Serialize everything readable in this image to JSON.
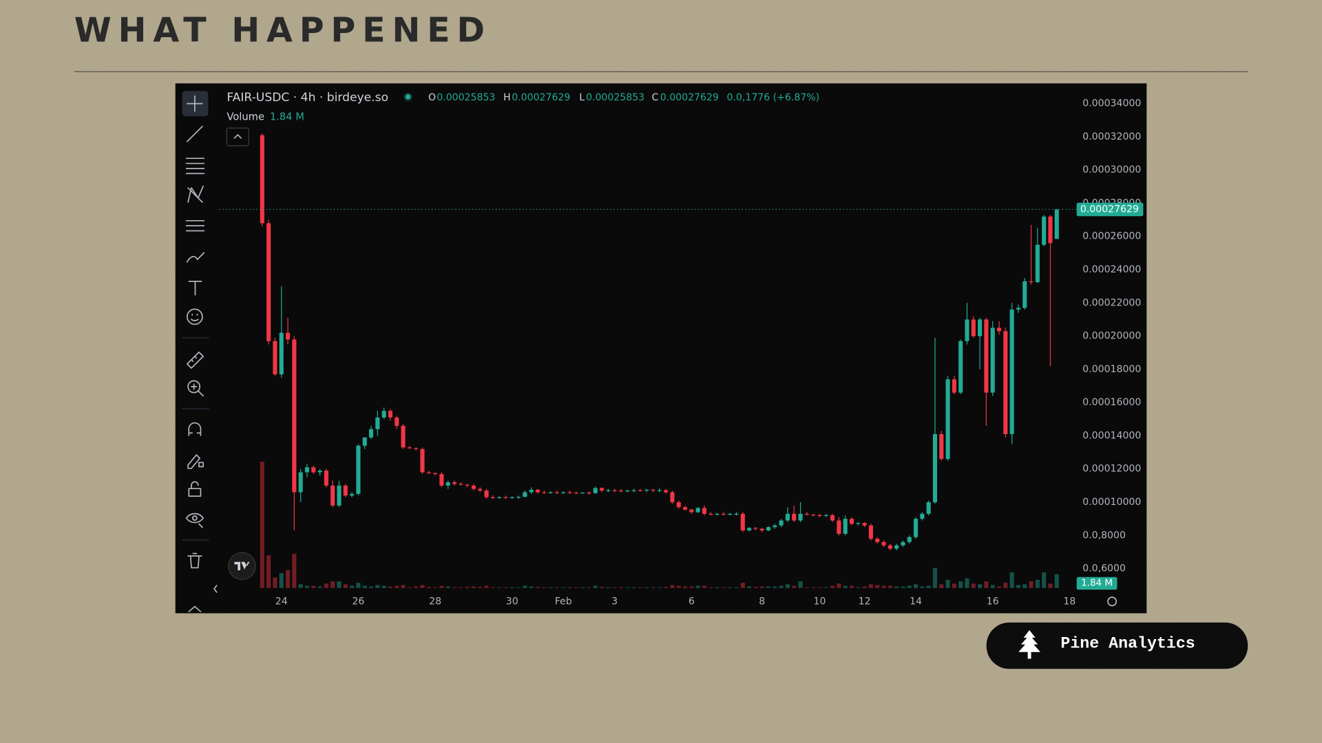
{
  "slide": {
    "title": "WHAT HAPPENED",
    "brand": "Pine Analytics"
  },
  "chart_data": {
    "type": "candlestick",
    "title": "FAIR-USDC · 4h · birdeye.so",
    "ohlc_legend": {
      "o_label": "O",
      "o": "0.00025853",
      "h_label": "H",
      "h": "0.00027629",
      "l_label": "L",
      "l": "0.00025853",
      "c_label": "C",
      "c": "0.00027629",
      "change": "0.0,1776 (+6.87%)"
    },
    "volume_title": "Volume",
    "volume_value_label": "1.84 M",
    "up_color": "#22ab94",
    "down_color": "#f23645",
    "grid": false,
    "ylim": [
      6e-05,
      0.00034
    ],
    "yticks": [
      {
        "value": 0.00034,
        "label": "0.00034000"
      },
      {
        "value": 0.00032,
        "label": "0.00032000"
      },
      {
        "value": 0.0003,
        "label": "0.00030000"
      },
      {
        "value": 0.00028,
        "label": "0.00028000"
      },
      {
        "value": 0.00026,
        "label": "0.00026000"
      },
      {
        "value": 0.00024,
        "label": "0.00024000"
      },
      {
        "value": 0.00022,
        "label": "0.00022000"
      },
      {
        "value": 0.0002,
        "label": "0.00020000"
      },
      {
        "value": 0.00018,
        "label": "0.00018000"
      },
      {
        "value": 0.00016,
        "label": "0.00016000"
      },
      {
        "value": 0.00014,
        "label": "0.00014000"
      },
      {
        "value": 0.00012,
        "label": "0.00012000"
      },
      {
        "value": 0.0001,
        "label": "0.00010000"
      },
      {
        "value": 8e-05,
        "label": "0.0,8000"
      },
      {
        "value": 6e-05,
        "label": "0.0,6000"
      }
    ],
    "categories": [
      null,
      null,
      null,
      "24",
      null,
      null,
      null,
      null,
      null,
      null,
      null,
      null,
      null,
      null,
      null,
      "26",
      null,
      null,
      null,
      null,
      null,
      null,
      null,
      null,
      null,
      null,
      null,
      "28",
      null,
      null,
      null,
      null,
      null,
      null,
      null,
      null,
      null,
      null,
      null,
      "30",
      null,
      null,
      null,
      null,
      null,
      null,
      null,
      "Feb",
      null,
      null,
      null,
      null,
      null,
      null,
      null,
      "3",
      null,
      null,
      null,
      null,
      null,
      null,
      null,
      null,
      null,
      null,
      null,
      "6",
      null,
      null,
      null,
      null,
      null,
      null,
      null,
      null,
      null,
      null,
      "8",
      null,
      null,
      null,
      null,
      null,
      null,
      null,
      null,
      "10",
      null,
      null,
      null,
      null,
      null,
      null,
      "12",
      null,
      null,
      null,
      null,
      null,
      null,
      null,
      "14",
      null,
      null,
      null,
      null,
      null,
      null,
      null,
      null,
      null,
      null,
      null,
      "16",
      null,
      null,
      null,
      null,
      null,
      null,
      null,
      null,
      null,
      null,
      null,
      "18"
    ],
    "candles": [
      [
        0.000321,
        0.000322,
        0.000266,
        0.000268
      ],
      [
        0.000268,
        0.00027,
        0.000195,
        0.000197
      ],
      [
        0.000197,
        0.000199,
        0.000176,
        0.000177
      ],
      [
        0.000177,
        0.00023,
        0.000175,
        0.000202
      ],
      [
        0.000202,
        0.000211,
        0.000195,
        0.000198
      ],
      [
        0.000198,
        0.0002,
        8.3e-05,
        0.000106
      ],
      [
        0.000106,
        0.00012,
        0.0001,
        0.000118
      ],
      [
        0.000118,
        0.000123,
        0.000115,
        0.000121
      ],
      [
        0.000121,
        0.000122,
        0.000117,
        0.000118
      ],
      [
        0.000118,
        0.00012,
        0.000116,
        0.000119
      ],
      [
        0.000119,
        0.00012,
        0.000109,
        0.00011
      ],
      [
        0.00011,
        0.000113,
        9.7e-05,
        9.8e-05
      ],
      [
        9.8e-05,
        0.000113,
        9.7e-05,
        0.00011
      ],
      [
        0.00011,
        0.000111,
        0.000103,
        0.000104
      ],
      [
        0.000104,
        0.000106,
        0.000103,
        0.000105
      ],
      [
        0.000105,
        0.000135,
        0.000104,
        0.000134
      ],
      [
        0.000134,
        0.000139,
        0.000132,
        0.000139
      ],
      [
        0.000139,
        0.000146,
        0.000138,
        0.000144
      ],
      [
        0.000144,
        0.000155,
        0.00014,
        0.000151
      ],
      [
        0.000151,
        0.000157,
        0.00015,
        0.000155
      ],
      [
        0.000155,
        0.000156,
        0.000149,
        0.000151
      ],
      [
        0.000151,
        0.000152,
        0.000144,
        0.000146
      ],
      [
        0.000146,
        0.000147,
        0.000132,
        0.000133
      ],
      [
        0.000133,
        0.000134,
        0.000132,
        0.0001325
      ],
      [
        0.0001325,
        0.000133,
        0.000131,
        0.000132
      ],
      [
        0.000132,
        0.000133,
        0.000117,
        0.000118
      ],
      [
        0.000118,
        0.000119,
        0.000117,
        0.0001175
      ],
      [
        0.0001175,
        0.000118,
        0.000116,
        0.000117
      ],
      [
        0.000117,
        0.000118,
        0.000109,
        0.00011
      ],
      [
        0.00011,
        0.000113,
        0.000108,
        0.000112
      ],
      [
        0.000112,
        0.000113,
        0.00011,
        0.000111
      ],
      [
        0.000111,
        0.000112,
        0.00011,
        0.0001105
      ],
      [
        0.0001105,
        0.000111,
        0.000109,
        0.00011
      ],
      [
        0.00011,
        0.000111,
        0.000107,
        0.000108
      ],
      [
        0.000108,
        0.000109,
        0.000106,
        0.000107
      ],
      [
        0.000107,
        0.000108,
        0.000102,
        0.000103
      ],
      [
        0.000103,
        0.000104,
        0.000102,
        0.0001028
      ],
      [
        0.0001028,
        0.0001035,
        0.000102,
        0.000103
      ],
      [
        0.000103,
        0.000104,
        0.000102,
        0.0001027
      ],
      [
        0.0001027,
        0.0001035,
        0.000102,
        0.000103
      ],
      [
        0.000103,
        0.000104,
        0.000102,
        0.0001032
      ],
      [
        0.0001032,
        0.000107,
        0.000103,
        0.000106
      ],
      [
        0.000106,
        0.000109,
        0.000105,
        0.0001075
      ],
      [
        0.0001075,
        0.000108,
        0.000105,
        0.000106
      ],
      [
        0.000106,
        0.000107,
        0.000105,
        0.0001058
      ],
      [
        0.0001058,
        0.0001065,
        0.000105,
        0.000106
      ],
      [
        0.000106,
        0.000107,
        0.000105,
        0.0001055
      ],
      [
        0.0001055,
        0.0001065,
        0.000105,
        0.000106
      ],
      [
        0.000106,
        0.000107,
        0.000105,
        0.0001057
      ],
      [
        0.0001057,
        0.0001065,
        0.000105,
        0.0001055
      ],
      [
        0.0001055,
        0.000106,
        0.000105,
        0.0001058
      ],
      [
        0.0001058,
        0.0001065,
        0.0001045,
        0.0001055
      ],
      [
        0.0001055,
        0.0001095,
        0.000105,
        0.0001085
      ],
      [
        0.0001085,
        0.000109,
        0.000106,
        0.000107
      ],
      [
        0.000107,
        0.000108,
        0.000106,
        0.0001072
      ],
      [
        0.0001072,
        0.000108,
        0.000106,
        0.000107
      ],
      [
        0.000107,
        0.000108,
        0.000106,
        0.0001068
      ],
      [
        0.0001068,
        0.0001075,
        0.000106,
        0.000107
      ],
      [
        0.000107,
        0.000108,
        0.000106,
        0.0001072
      ],
      [
        0.0001072,
        0.000108,
        0.0001065,
        0.000107
      ],
      [
        0.000107,
        0.000108,
        0.000106,
        0.0001075
      ],
      [
        0.0001075,
        0.000108,
        0.000106,
        0.000107
      ],
      [
        0.000107,
        0.0001085,
        0.000106,
        0.0001072
      ],
      [
        0.0001072,
        0.000108,
        0.000105,
        0.000106
      ],
      [
        0.000106,
        0.000107,
        9.9e-05,
        0.0001
      ],
      [
        0.0001,
        0.000101,
        9.6e-05,
        9.7e-05
      ],
      [
        9.7e-05,
        9.8e-05,
        9.5e-05,
        9.55e-05
      ],
      [
        9.55e-05,
        9.6e-05,
        9.3e-05,
        9.4e-05
      ],
      [
        9.4e-05,
        9.7e-05,
        9.35e-05,
        9.65e-05
      ],
      [
        9.65e-05,
        9.8e-05,
        9.2e-05,
        9.3e-05
      ],
      [
        9.3e-05,
        9.4e-05,
        9.2e-05,
        9.28e-05
      ],
      [
        9.28e-05,
        9.35e-05,
        9.2e-05,
        9.3e-05
      ],
      [
        9.3e-05,
        9.4e-05,
        9.2e-05,
        9.27e-05
      ],
      [
        9.27e-05,
        9.35e-05,
        9.2e-05,
        9.3e-05
      ],
      [
        9.3e-05,
        9.4e-05,
        9.2e-05,
        9.3e-05
      ],
      [
        9.3e-05,
        9.4e-05,
        8.2e-05,
        8.3e-05
      ],
      [
        8.3e-05,
        8.5e-05,
        8.25e-05,
        8.45e-05
      ],
      [
        8.45e-05,
        8.5e-05,
        8.3e-05,
        8.4e-05
      ],
      [
        8.4e-05,
        8.45e-05,
        8.2e-05,
        8.3e-05
      ],
      [
        8.3e-05,
        8.55e-05,
        8.25e-05,
        8.5e-05
      ],
      [
        8.5e-05,
        8.7e-05,
        8.4e-05,
        8.6e-05
      ],
      [
        8.6e-05,
        9e-05,
        8.5e-05,
        8.9e-05
      ],
      [
        8.9e-05,
        9.7e-05,
        8.8e-05,
        9.3e-05
      ],
      [
        9.3e-05,
        9.8e-05,
        8.8e-05,
        8.9e-05
      ],
      [
        8.9e-05,
        0.0001,
        8.8e-05,
        9.3e-05
      ],
      [
        9.3e-05,
        9.4e-05,
        9.2e-05,
        9.25e-05
      ],
      [
        9.25e-05,
        9.3e-05,
        9.15e-05,
        9.22e-05
      ],
      [
        9.22e-05,
        9.3e-05,
        9.1e-05,
        9.2e-05
      ],
      [
        9.2e-05,
        9.3e-05,
        9.1e-05,
        9.22e-05
      ],
      [
        9.22e-05,
        9.3e-05,
        8.8e-05,
        8.9e-05
      ],
      [
        8.9e-05,
        9.1e-05,
        8e-05,
        8.1e-05
      ],
      [
        8.1e-05,
        9.2e-05,
        8e-05,
        9e-05
      ],
      [
        9e-05,
        9.1e-05,
        8.6e-05,
        8.7e-05
      ],
      [
        8.7e-05,
        8.8e-05,
        8.6e-05,
        8.75e-05
      ],
      [
        8.75e-05,
        8.8e-05,
        8.5e-05,
        8.6e-05
      ],
      [
        8.6e-05,
        8.7e-05,
        7.7e-05,
        7.8e-05
      ],
      [
        7.8e-05,
        7.9e-05,
        7.5e-05,
        7.6e-05
      ],
      [
        7.6e-05,
        7.7e-05,
        7.3e-05,
        7.4e-05
      ],
      [
        7.4e-05,
        7.5e-05,
        7.1e-05,
        7.2e-05
      ],
      [
        7.2e-05,
        7.5e-05,
        7.1e-05,
        7.4e-05
      ],
      [
        7.4e-05,
        7.7e-05,
        7.3e-05,
        7.6e-05
      ],
      [
        7.6e-05,
        8e-05,
        7.5e-05,
        7.9e-05
      ],
      [
        7.9e-05,
        9.1e-05,
        7.8e-05,
        9e-05
      ],
      [
        9e-05,
        9.4e-05,
        8.9e-05,
        9.3e-05
      ],
      [
        9.3e-05,
        0.000101,
        9.2e-05,
        0.0001
      ],
      [
        0.0001,
        0.000199,
        9.9e-05,
        0.000141
      ],
      [
        0.000141,
        0.000143,
        0.000125,
        0.000126
      ],
      [
        0.000126,
        0.000176,
        0.000125,
        0.000174
      ],
      [
        0.000174,
        0.000176,
        0.000165,
        0.000166
      ],
      [
        0.000166,
        0.000198,
        0.000165,
        0.000197
      ],
      [
        0.000197,
        0.00022,
        0.000195,
        0.00021
      ],
      [
        0.00021,
        0.000212,
        0.000199,
        0.0002
      ],
      [
        0.0002,
        0.000211,
        0.00018,
        0.00021
      ],
      [
        0.00021,
        0.000211,
        0.000146,
        0.000166
      ],
      [
        0.000166,
        0.000209,
        0.000164,
        0.000205
      ],
      [
        0.000205,
        0.000209,
        0.000201,
        0.000203
      ],
      [
        0.000203,
        0.000205,
        0.000139,
        0.000141
      ],
      [
        0.000141,
        0.00022,
        0.000135,
        0.000216
      ],
      [
        0.000216,
        0.000219,
        0.000214,
        0.000217
      ],
      [
        0.000217,
        0.000235,
        0.000216,
        0.000233
      ],
      [
        0.000233,
        0.000267,
        0.000231,
        0.0002325
      ],
      [
        0.0002325,
        0.000265,
        0.000232,
        0.000255
      ],
      [
        0.000255,
        0.000273,
        0.000254,
        0.000272
      ],
      [
        0.000272,
        0.000273,
        0.000182,
        0.000256
      ],
      [
        0.00025853,
        0.00027629,
        0.00025853,
        0.00027629
      ],
      null,
      null
    ],
    "volume": [
      17,
      4.4,
      1.4,
      2.0,
      2.4,
      4.6,
      0.5,
      0.3,
      0.3,
      0.2,
      0.6,
      0.9,
      0.9,
      0.5,
      0.3,
      0.7,
      0.3,
      0.2,
      0.4,
      0.3,
      0.2,
      0.3,
      0.4,
      0.1,
      0.2,
      0.4,
      0.15,
      0.1,
      0.3,
      0.2,
      0.1,
      0.1,
      0.15,
      0.2,
      0.15,
      0.3,
      0.1,
      0.1,
      0.1,
      0.1,
      0.1,
      0.3,
      0.2,
      0.15,
      0.1,
      0.1,
      0.1,
      0.1,
      0.1,
      0.1,
      0.1,
      0.1,
      0.3,
      0.15,
      0.1,
      0.1,
      0.1,
      0.1,
      0.1,
      0.1,
      0.1,
      0.1,
      0.1,
      0.15,
      0.4,
      0.3,
      0.2,
      0.2,
      0.3,
      0.3,
      0.1,
      0.1,
      0.1,
      0.1,
      0.1,
      0.7,
      0.2,
      0.15,
      0.2,
      0.2,
      0.2,
      0.3,
      0.5,
      0.3,
      0.9,
      0.1,
      0.1,
      0.1,
      0.1,
      0.3,
      0.6,
      0.3,
      0.3,
      0.1,
      0.2,
      0.5,
      0.4,
      0.3,
      0.3,
      0.2,
      0.2,
      0.3,
      0.5,
      0.2,
      0.3,
      2.7,
      0.5,
      1.1,
      0.6,
      0.9,
      1.3,
      0.6,
      0.5,
      0.9,
      0.4,
      0.2,
      0.7,
      2.1,
      0.4,
      0.5,
      0.9,
      1.1,
      2.1,
      0.6,
      1.84,
      null,
      null
    ]
  }
}
